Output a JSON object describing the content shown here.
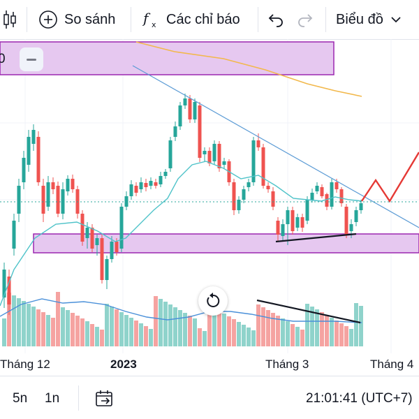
{
  "toolbar": {
    "compare_label": "So sánh",
    "indicators_label": "Các chỉ báo",
    "chart_type_label": "Biểu đồ",
    "icons": [
      "candles-icon",
      "plus-circle-icon",
      "fx-icon",
      "undo-icon",
      "redo-icon",
      "chevron-down-icon"
    ]
  },
  "legend": {
    "fragment": "0"
  },
  "time_axis": {
    "labels": [
      "Tháng 12",
      "2023",
      "Tháng 3",
      "Tháng 4"
    ]
  },
  "bottom_bar": {
    "range_5d": "5n",
    "range_1d": "1n",
    "clock": "21:01:41 (UTC+7)"
  },
  "colors": {
    "up": "#26a69a",
    "down": "#ef5350",
    "ma_fast": "#4fc3c9",
    "ma_slow": "#f2b84b",
    "trendline": "#5b9bd5",
    "zone_fill": "#e6c8f0",
    "zone_border": "#9c27b0",
    "projection": "#e53935"
  }
}
